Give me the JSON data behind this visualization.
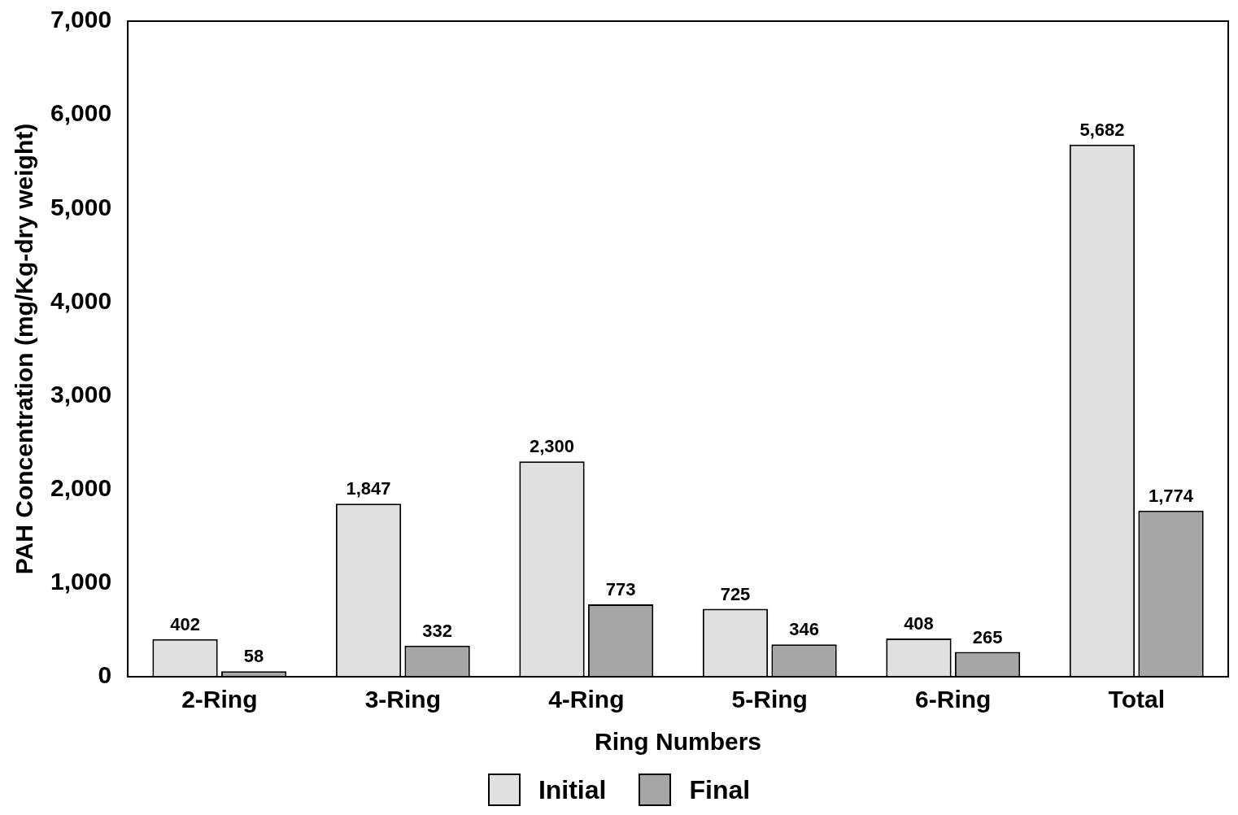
{
  "chart_data": {
    "type": "bar",
    "xlabel": "Ring Numbers",
    "ylabel": "PAH Concentration (mg/Kg-dry weight)",
    "categories": [
      "2-Ring",
      "3-Ring",
      "4-Ring",
      "5-Ring",
      "6-Ring",
      "Total"
    ],
    "series": [
      {
        "name": "Initial",
        "color": "#e0e0e0",
        "values": [
          402,
          1847,
          2300,
          725,
          408,
          5682
        ],
        "value_labels": [
          "402",
          "1,847",
          "2,300",
          "725",
          "408",
          "5,682"
        ]
      },
      {
        "name": "Final",
        "color": "#a6a6a6",
        "values": [
          58,
          332,
          773,
          346,
          265,
          1774
        ],
        "value_labels": [
          "58",
          "332",
          "773",
          "346",
          "265",
          "1,774"
        ]
      }
    ],
    "ylim": [
      0,
      7000
    ],
    "yticks": [
      {
        "value": 0,
        "label": "0"
      },
      {
        "value": 1000,
        "label": "1,000"
      },
      {
        "value": 2000,
        "label": "2,000"
      },
      {
        "value": 3000,
        "label": "3,000"
      },
      {
        "value": 4000,
        "label": "4,000"
      },
      {
        "value": 5000,
        "label": "5,000"
      },
      {
        "value": 6000,
        "label": "6,000"
      },
      {
        "value": 7000,
        "label": "7,000"
      }
    ],
    "grid": false,
    "legend": "bottom"
  }
}
